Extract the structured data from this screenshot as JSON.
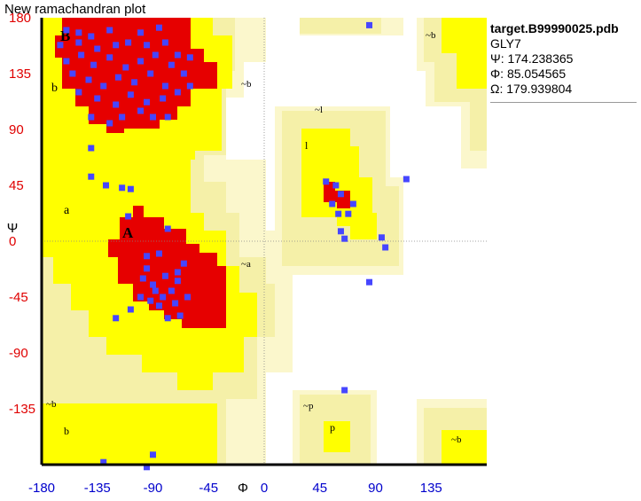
{
  "title": "New ramachandran plot",
  "info": {
    "file": "target.B99990025.pdb",
    "residue": "GLY7",
    "psi": "Ψ: 174.238365",
    "phi": "Φ: 85.054565",
    "omega": "Ω: 179.939804"
  },
  "colors": {
    "core": "#e60000",
    "allowed": "#ffff00",
    "generous": "#f5f0a8",
    "extra": "#fbf7cc",
    "points": "#4646ff",
    "y_ticks": "#e00000",
    "x_ticks": "#0000cc"
  },
  "chart_data": {
    "type": "scatter",
    "title": "New ramachandran plot",
    "xlabel": "Φ",
    "ylabel": "Ψ",
    "xlim": [
      -180,
      180
    ],
    "ylim": [
      -180,
      180
    ],
    "x_ticks": [
      "-180",
      "-135",
      "-90",
      "-45",
      "0",
      "45",
      "90",
      "135"
    ],
    "y_ticks": [
      "180",
      "135",
      "90",
      "45",
      "0",
      "-45",
      "-90",
      "-135"
    ],
    "region_labels": [
      "B",
      "b",
      "a",
      "A",
      "~b",
      "~l",
      "l",
      "~a",
      "~b",
      "b",
      "~p",
      "p",
      "~b"
    ],
    "points": [
      [
        -160,
        170
      ],
      [
        -150,
        168
      ],
      [
        -140,
        165
      ],
      [
        -125,
        170
      ],
      [
        -100,
        168
      ],
      [
        -85,
        172
      ],
      [
        -165,
        158
      ],
      [
        -150,
        160
      ],
      [
        -135,
        155
      ],
      [
        -120,
        158
      ],
      [
        -110,
        160
      ],
      [
        -95,
        158
      ],
      [
        -80,
        160
      ],
      [
        -70,
        150
      ],
      [
        -160,
        145
      ],
      [
        -148,
        150
      ],
      [
        -138,
        142
      ],
      [
        -125,
        148
      ],
      [
        -112,
        140
      ],
      [
        -100,
        145
      ],
      [
        -88,
        150
      ],
      [
        -75,
        142
      ],
      [
        -65,
        135
      ],
      [
        -155,
        135
      ],
      [
        -142,
        130
      ],
      [
        -130,
        125
      ],
      [
        -118,
        132
      ],
      [
        -105,
        128
      ],
      [
        -92,
        135
      ],
      [
        -80,
        125
      ],
      [
        -70,
        120
      ],
      [
        -150,
        120
      ],
      [
        -135,
        115
      ],
      [
        -120,
        110
      ],
      [
        -108,
        118
      ],
      [
        -95,
        112
      ],
      [
        -82,
        115
      ],
      [
        -115,
        100
      ],
      [
        -100,
        105
      ],
      [
        -125,
        95
      ],
      [
        -140,
        100
      ],
      [
        -90,
        100
      ],
      [
        -78,
        100
      ],
      [
        -60,
        148
      ],
      [
        -60,
        125
      ],
      [
        -140,
        52
      ],
      [
        -128,
        45
      ],
      [
        -115,
        43
      ],
      [
        -108,
        42
      ],
      [
        -140,
        75
      ],
      [
        -110,
        20
      ],
      [
        -78,
        10
      ],
      [
        -85,
        -10
      ],
      [
        -95,
        -12
      ],
      [
        -65,
        -18
      ],
      [
        -98,
        -30
      ],
      [
        -90,
        -35
      ],
      [
        -80,
        -28
      ],
      [
        -75,
        -40
      ],
      [
        -70,
        -32
      ],
      [
        -82,
        -45
      ],
      [
        -72,
        -50
      ],
      [
        -92,
        -48
      ],
      [
        -68,
        -60
      ],
      [
        -62,
        -45
      ],
      [
        -100,
        -45
      ],
      [
        -108,
        -55
      ],
      [
        -120,
        -62
      ],
      [
        -78,
        -62
      ],
      [
        -85,
        -52
      ],
      [
        -88,
        -40
      ],
      [
        -70,
        -25
      ],
      [
        -95,
        -22
      ],
      [
        50,
        48
      ],
      [
        58,
        45
      ],
      [
        62,
        38
      ],
      [
        55,
        30
      ],
      [
        60,
        22
      ],
      [
        68,
        22
      ],
      [
        72,
        30
      ],
      [
        62,
        8
      ],
      [
        65,
        2
      ],
      [
        95,
        3
      ],
      [
        98,
        -5
      ],
      [
        85,
        -33
      ],
      [
        115,
        50
      ],
      [
        -130,
        -178
      ],
      [
        -90,
        -172
      ],
      [
        -95,
        -182
      ],
      [
        65,
        -120
      ],
      [
        85,
        174
      ]
    ]
  }
}
